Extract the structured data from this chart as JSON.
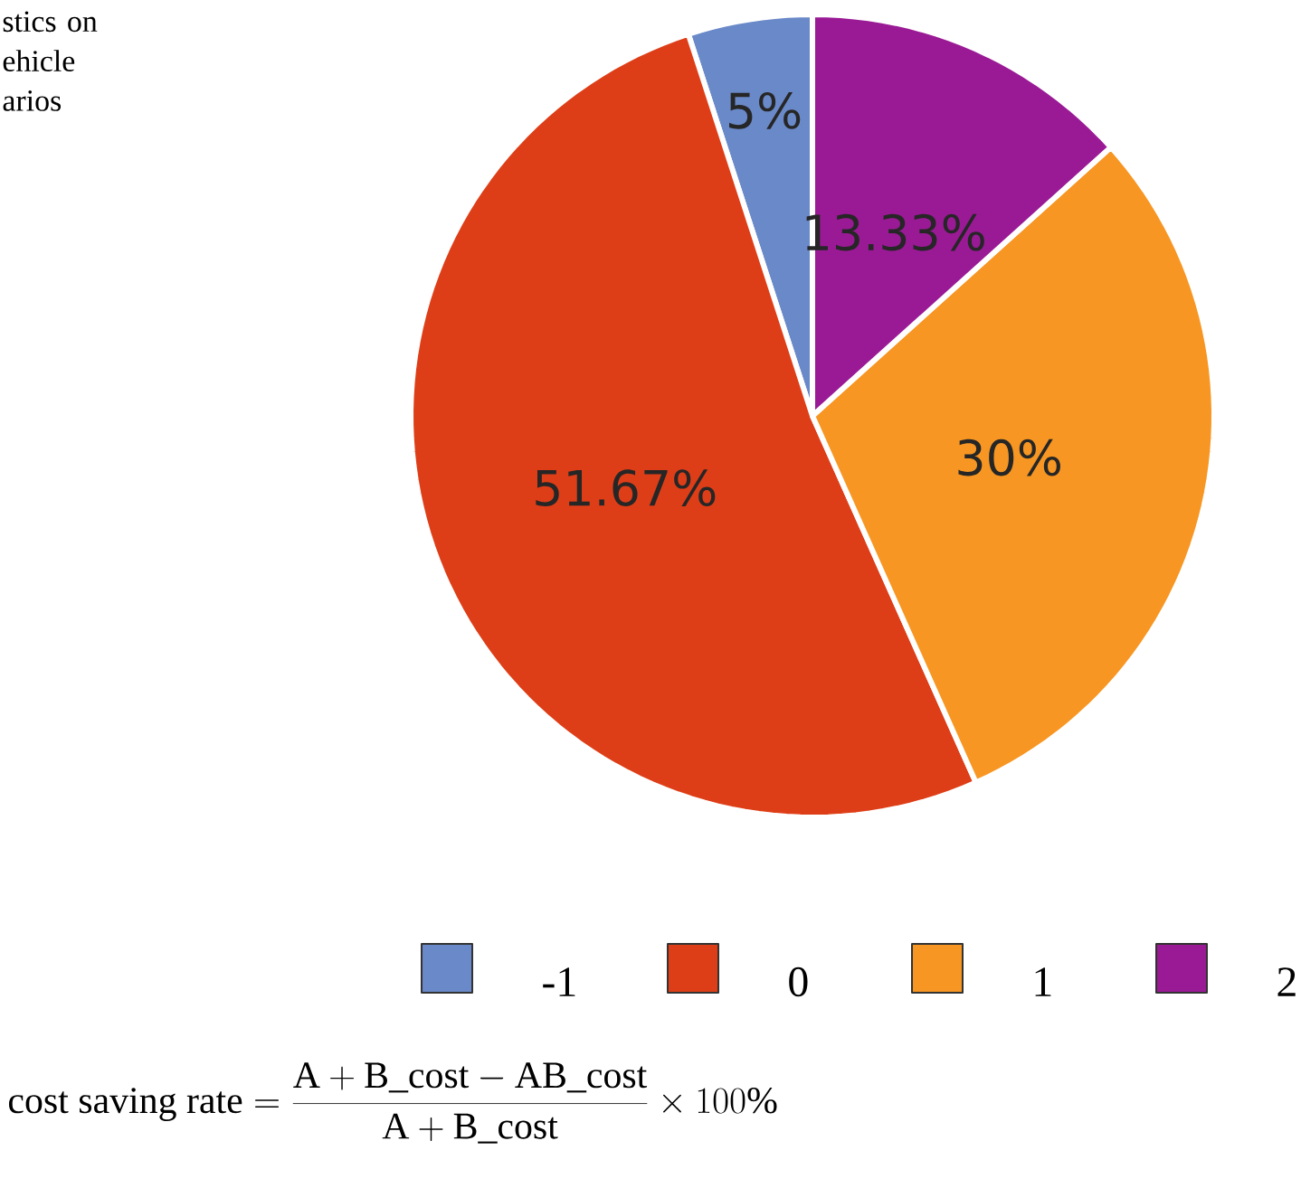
{
  "chart_data": {
    "type": "pie",
    "title": "stics on ehicle arios",
    "categories": [
      "-1",
      "0",
      "1",
      "2"
    ],
    "values": [
      5,
      51.67,
      30,
      13.33
    ],
    "colors": [
      "#6a89c8",
      "#de3e17",
      "#f79622",
      "#9a1a95"
    ],
    "value_labels": [
      "5%",
      "51.67%",
      "30%",
      "13.33%"
    ],
    "legend": "bottom",
    "annotations": [
      "\\mathrm{cost\\ saving\\ rate} = \\frac{\\mathrm{A}+\\mathrm{B\\_cost}-\\mathrm{AB\\_cost}}{\\mathrm{A}+\\mathrm{B\\_cost}}\\times 100\\%"
    ]
  }
}
